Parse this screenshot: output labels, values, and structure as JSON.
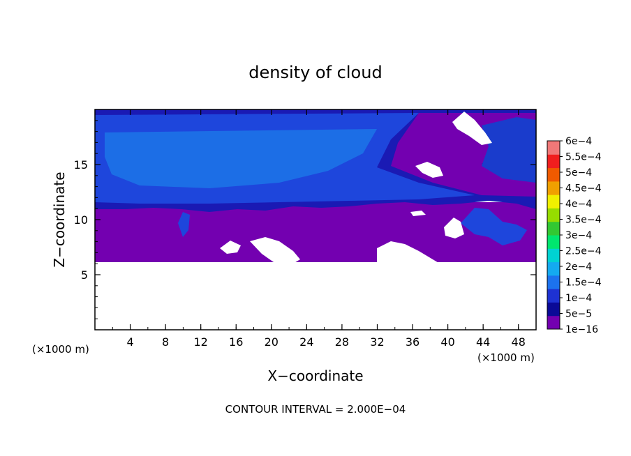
{
  "chart_data": {
    "type": "heatmap",
    "title": "density of cloud",
    "xlabel": "X−coordinate",
    "ylabel": "Z−coordinate",
    "x_unit_left": "(×1000 m)",
    "x_unit_right": "(×1000 m)",
    "footer": "CONTOUR INTERVAL = 2.000E−04",
    "xlim": [
      0,
      50
    ],
    "ylim": [
      0,
      20
    ],
    "x_ticks": [
      4,
      8,
      12,
      16,
      20,
      24,
      28,
      32,
      36,
      40,
      44,
      48
    ],
    "x_tick_labels": [
      "4",
      "8",
      "12",
      "16",
      "20",
      "24",
      "28",
      "32",
      "36",
      "40",
      "44",
      "48"
    ],
    "y_ticks": [
      5,
      10,
      15
    ],
    "y_tick_labels": [
      "5",
      "10",
      "15"
    ],
    "colorbar": {
      "labels": [
        "1e−16",
        "5e−5",
        "1e−4",
        "1.5e−4",
        "2e−4",
        "2.5e−4",
        "3e−4",
        "3.5e−4",
        "4e−4",
        "4.5e−4",
        "5e−4",
        "5.5e−4",
        "6e−4"
      ],
      "colors": [
        "#7300b0",
        "#0a0a96",
        "#1e32d2",
        "#1c72ee",
        "#14aaf0",
        "#00d2d2",
        "#00e66e",
        "#32c832",
        "#96dc00",
        "#f0f000",
        "#f0a000",
        "#f05a00",
        "#f01e1e",
        "#f07878"
      ]
    },
    "regions": [
      {
        "name": "cloud-free",
        "color": "#ffffff",
        "z_range": [
          0,
          6.1
        ]
      },
      {
        "name": "low purple layer",
        "value_class": "1e-16 to 5e-5",
        "z_range": [
          6.1,
          11
        ]
      },
      {
        "name": "main blue layer",
        "value_class": "1e-4 to 1.5e-4",
        "z_range": [
          11,
          19.5
        ]
      }
    ]
  }
}
